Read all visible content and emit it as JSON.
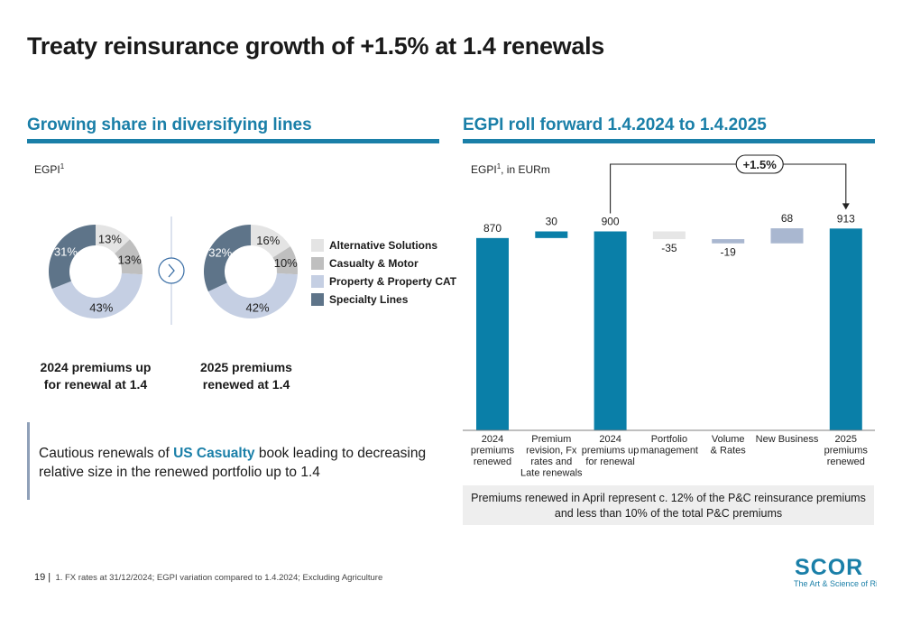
{
  "page": {
    "title": "Treaty reinsurance growth of +1.5% at 1.4 renewals",
    "page_number": "19 |",
    "footnote": "1. FX rates at 31/12/2024; EGPI variation compared to 1.4.2024; Excluding Agriculture"
  },
  "left": {
    "section_title": "Growing share in diversifying lines",
    "unit_label": "EGPI",
    "unit_sup": "1",
    "legend": [
      {
        "name": "Alternative Solutions",
        "color": "#e4e4e4"
      },
      {
        "name": "Casualty & Motor",
        "color": "#bfbfbf"
      },
      {
        "name": "Property & Property CAT",
        "color": "#c5cfe3"
      },
      {
        "name": "Specialty Lines",
        "color": "#5e7489"
      }
    ],
    "donut_2024_caption_line1": "2024 premiums up",
    "donut_2024_caption_line2": "for renewal at 1.4",
    "donut_2025_caption_line1": "2025 premiums",
    "donut_2025_caption_line2": "renewed at 1.4",
    "callout_prefix": "Cautious renewals of ",
    "callout_highlight": "US Casualty",
    "callout_suffix_line1": " book leading to decreasing",
    "callout_line2": "relative size in the renewed portfolio up to 1.4"
  },
  "right": {
    "section_title": "EGPI roll forward 1.4.2024 to 1.4.2025",
    "unit_label": "EGPI",
    "unit_sup": "1",
    "unit_suffix": ", in EURm",
    "growth_badge": "+1.5%",
    "note": "Premiums renewed in April represent c. 12% of the P&C reinsurance premiums and less than 10% of the total P&C premiums"
  },
  "chart_data": [
    {
      "type": "pie",
      "variant": "donut",
      "caption": "2024 premiums up for renewal at 1.4",
      "categories": [
        "Alternative Solutions",
        "Casualty & Motor",
        "Property & Property CAT",
        "Specialty Lines"
      ],
      "values": [
        13,
        13,
        43,
        31
      ],
      "labels": [
        "13%",
        "13%",
        "43%",
        "31%"
      ],
      "colors": [
        "#e4e4e4",
        "#bfbfbf",
        "#c5cfe3",
        "#5e7489"
      ]
    },
    {
      "type": "pie",
      "variant": "donut",
      "caption": "2025 premiums renewed at 1.4",
      "categories": [
        "Alternative Solutions",
        "Casualty & Motor",
        "Property & Property CAT",
        "Specialty Lines"
      ],
      "values": [
        16,
        10,
        42,
        32
      ],
      "labels": [
        "16%",
        "10%",
        "42%",
        "32%"
      ],
      "colors": [
        "#e4e4e4",
        "#bfbfbf",
        "#c5cfe3",
        "#5e7489"
      ]
    },
    {
      "type": "bar",
      "variant": "waterfall",
      "ylim": [
        0,
        1000
      ],
      "categories": [
        [
          "2024",
          "premiums",
          "renewed"
        ],
        [
          "Premium",
          "revision, Fx",
          "rates and",
          "Late renewals"
        ],
        [
          "2024",
          "premiums up",
          "for renewal"
        ],
        [
          "Portfolio",
          "management"
        ],
        [
          "Volume",
          "& Rates"
        ],
        [
          "New Business"
        ],
        [
          "2025",
          "premiums",
          "renewed"
        ]
      ],
      "values": [
        870,
        30,
        900,
        -35,
        -19,
        68,
        913
      ],
      "labels": [
        "870",
        "30",
        "900",
        "-35",
        "-19",
        "68",
        "913"
      ],
      "kinds": [
        "total",
        "delta",
        "total",
        "delta",
        "delta",
        "delta",
        "total"
      ],
      "colors": [
        "#0a7fa8",
        "#0a7fa8",
        "#0a7fa8",
        "#e6e6e6",
        "#a9b7d0",
        "#a9b7d0",
        "#0a7fa8"
      ]
    }
  ]
}
